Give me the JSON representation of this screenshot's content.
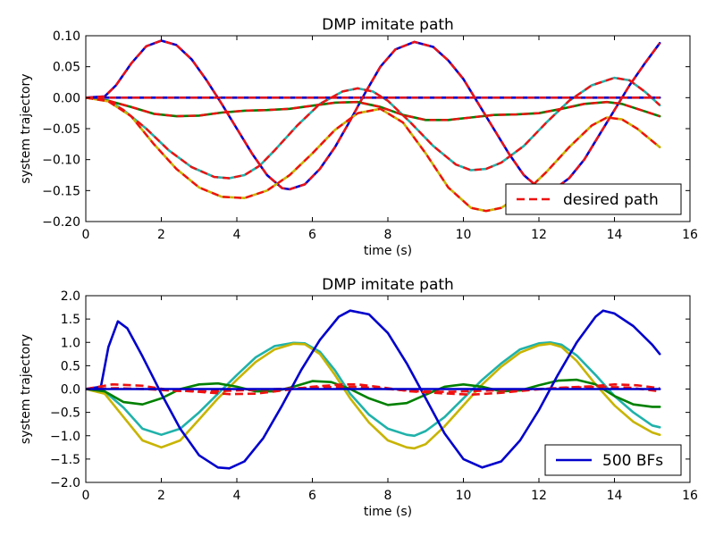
{
  "chart_data": [
    {
      "type": "line",
      "title": "DMP imitate path",
      "xlabel": "time (s)",
      "ylabel": "system trajectory",
      "xlim": [
        0,
        16
      ],
      "ylim": [
        -0.2,
        0.1
      ],
      "x_ticks": [
        0,
        2,
        4,
        6,
        8,
        10,
        12,
        14,
        16
      ],
      "x_tick_labels": [
        "0",
        "2",
        "4",
        "6",
        "8",
        "10",
        "12",
        "14",
        "16"
      ],
      "y_ticks": [
        0.1,
        0.05,
        0.0,
        -0.05,
        -0.1,
        -0.15,
        -0.2
      ],
      "y_tick_labels": [
        "0.10",
        "0.05",
        "0.00",
        "−0.05",
        "−0.10",
        "−0.15",
        "−0.20"
      ],
      "grid": false,
      "legend_position": "lower-right",
      "legend_label": "desired path",
      "series": [
        {
          "color": "#0000cc",
          "style": "solid",
          "x": [
            0,
            0.5,
            0.8,
            1.2,
            1.6,
            2.0,
            2.4,
            2.8,
            3.2,
            3.6,
            4.0,
            4.4,
            4.8,
            5.2,
            5.4,
            5.8,
            6.2,
            6.6,
            7.0,
            7.4,
            7.8,
            8.2,
            8.7,
            9.2,
            9.6,
            10.0,
            10.4,
            10.8,
            11.2,
            11.6,
            12.0,
            12.4,
            12.8,
            13.2,
            13.6,
            14.0,
            14.4,
            14.8,
            15.2
          ],
          "y": [
            0,
            0.002,
            0.02,
            0.055,
            0.083,
            0.092,
            0.085,
            0.062,
            0.028,
            -0.01,
            -0.05,
            -0.09,
            -0.125,
            -0.146,
            -0.148,
            -0.14,
            -0.115,
            -0.08,
            -0.037,
            0.008,
            0.05,
            0.078,
            0.09,
            0.082,
            0.06,
            0.03,
            -0.01,
            -0.05,
            -0.09,
            -0.125,
            -0.146,
            -0.148,
            -0.13,
            -0.1,
            -0.06,
            -0.02,
            0.02,
            0.055,
            0.088
          ]
        },
        {
          "color": "#20b2aa",
          "style": "solid",
          "x": [
            0,
            0.6,
            1.0,
            1.6,
            2.2,
            2.8,
            3.4,
            3.8,
            4.2,
            4.6,
            5.0,
            5.6,
            6.2,
            6.8,
            7.2,
            7.6,
            8.0,
            8.6,
            9.2,
            9.8,
            10.2,
            10.6,
            11.0,
            11.6,
            12.2,
            12.8,
            13.4,
            14.0,
            14.4,
            14.8,
            15.2
          ],
          "y": [
            0,
            -0.005,
            -0.02,
            -0.05,
            -0.085,
            -0.112,
            -0.128,
            -0.13,
            -0.125,
            -0.11,
            -0.085,
            -0.045,
            -0.01,
            0.01,
            0.015,
            0.01,
            -0.005,
            -0.04,
            -0.078,
            -0.108,
            -0.117,
            -0.115,
            -0.105,
            -0.078,
            -0.04,
            -0.005,
            0.02,
            0.032,
            0.028,
            0.01,
            -0.012
          ]
        },
        {
          "color": "#008000",
          "style": "solid",
          "x": [
            0,
            0.6,
            1.2,
            1.8,
            2.4,
            3.0,
            3.6,
            4.2,
            4.8,
            5.4,
            6.0,
            6.6,
            7.2,
            7.8,
            8.4,
            9.0,
            9.6,
            10.2,
            10.8,
            11.4,
            12.0,
            12.6,
            13.2,
            13.8,
            14.2,
            14.6,
            15.2
          ],
          "y": [
            0,
            -0.005,
            -0.015,
            -0.026,
            -0.03,
            -0.029,
            -0.024,
            -0.021,
            -0.02,
            -0.018,
            -0.013,
            -0.008,
            -0.007,
            -0.015,
            -0.028,
            -0.036,
            -0.036,
            -0.032,
            -0.028,
            -0.027,
            -0.025,
            -0.018,
            -0.01,
            -0.007,
            -0.01,
            -0.018,
            -0.03
          ]
        },
        {
          "color": "#c8b400",
          "style": "solid",
          "x": [
            0,
            0.6,
            1.2,
            1.8,
            2.4,
            3.0,
            3.6,
            4.2,
            4.8,
            5.4,
            6.0,
            6.6,
            7.2,
            7.8,
            8.4,
            9.0,
            9.6,
            10.2,
            10.6,
            11.0,
            11.6,
            12.2,
            12.8,
            13.4,
            13.8,
            14.2,
            14.6,
            15.2
          ],
          "y": [
            0,
            -0.006,
            -0.03,
            -0.075,
            -0.115,
            -0.145,
            -0.16,
            -0.162,
            -0.15,
            -0.125,
            -0.09,
            -0.052,
            -0.025,
            -0.018,
            -0.04,
            -0.09,
            -0.145,
            -0.178,
            -0.183,
            -0.178,
            -0.155,
            -0.12,
            -0.08,
            -0.045,
            -0.032,
            -0.035,
            -0.05,
            -0.08
          ]
        },
        {
          "color": "#0000cc",
          "style": "solid",
          "x": [
            0,
            15.2
          ],
          "y": [
            0,
            0
          ]
        }
      ]
    },
    {
      "type": "line",
      "title": "DMP imitate path",
      "xlabel": "time (s)",
      "ylabel": "system trajectory",
      "xlim": [
        0,
        16
      ],
      "ylim": [
        -2.0,
        2.0
      ],
      "x_ticks": [
        0,
        2,
        4,
        6,
        8,
        10,
        12,
        14,
        16
      ],
      "x_tick_labels": [
        "0",
        "2",
        "4",
        "6",
        "8",
        "10",
        "12",
        "14",
        "16"
      ],
      "y_ticks": [
        2.0,
        1.5,
        1.0,
        0.5,
        0.0,
        -0.5,
        -1.0,
        -1.5,
        -2.0
      ],
      "y_tick_labels": [
        "2.0",
        "1.5",
        "1.0",
        "0.5",
        "0.0",
        "−0.5",
        "−1.0",
        "−1.5",
        "−2.0"
      ],
      "grid": false,
      "legend_position": "lower-right",
      "legend_label": "500 BFs",
      "series": [
        {
          "color": "#20b2aa",
          "style": "solid",
          "x": [
            0,
            0.5,
            1.0,
            1.5,
            2.0,
            2.5,
            3.0,
            3.5,
            4.0,
            4.5,
            5.0,
            5.5,
            5.8,
            6.2,
            6.6,
            7.0,
            7.5,
            8.0,
            8.5,
            8.7,
            9.0,
            9.5,
            10.0,
            10.5,
            11.0,
            11.5,
            12.0,
            12.3,
            12.6,
            13.0,
            13.5,
            14.0,
            14.5,
            15.0,
            15.2
          ],
          "y": [
            0,
            -0.05,
            -0.4,
            -0.85,
            -0.98,
            -0.85,
            -0.5,
            -0.1,
            0.3,
            0.68,
            0.92,
            0.99,
            0.98,
            0.8,
            0.4,
            -0.1,
            -0.55,
            -0.85,
            -0.98,
            -1.0,
            -0.9,
            -0.6,
            -0.2,
            0.2,
            0.55,
            0.85,
            0.98,
            1.0,
            0.95,
            0.72,
            0.3,
            -0.15,
            -0.5,
            -0.78,
            -0.82
          ]
        },
        {
          "color": "#c8b400",
          "style": "solid",
          "x": [
            0,
            0.5,
            1.0,
            1.5,
            2.0,
            2.5,
            3.0,
            3.5,
            4.0,
            4.5,
            5.0,
            5.5,
            5.8,
            6.2,
            6.6,
            7.0,
            7.5,
            8.0,
            8.5,
            8.7,
            9.0,
            9.5,
            10.0,
            10.5,
            11.0,
            11.5,
            12.0,
            12.3,
            12.6,
            13.0,
            13.5,
            14.0,
            14.5,
            15.0,
            15.2
          ],
          "y": [
            0,
            -0.1,
            -0.6,
            -1.1,
            -1.25,
            -1.1,
            -0.65,
            -0.2,
            0.2,
            0.58,
            0.85,
            0.97,
            0.96,
            0.75,
            0.3,
            -0.2,
            -0.72,
            -1.1,
            -1.25,
            -1.27,
            -1.18,
            -0.8,
            -0.35,
            0.1,
            0.48,
            0.78,
            0.94,
            0.97,
            0.9,
            0.6,
            0.1,
            -0.35,
            -0.7,
            -0.93,
            -0.98
          ]
        },
        {
          "color": "#008000",
          "style": "solid",
          "x": [
            0,
            0.5,
            1.0,
            1.5,
            2.0,
            2.5,
            3.0,
            3.5,
            4.0,
            4.5,
            5.0,
            5.5,
            6.0,
            6.5,
            7.0,
            7.5,
            8.0,
            8.5,
            9.0,
            9.5,
            10.0,
            10.5,
            11.0,
            11.5,
            12.0,
            12.5,
            13.0,
            13.5,
            14.0,
            14.5,
            15.0,
            15.2
          ],
          "y": [
            0,
            -0.05,
            -0.28,
            -0.33,
            -0.2,
            0.0,
            0.1,
            0.12,
            0.05,
            -0.05,
            -0.05,
            0.05,
            0.17,
            0.15,
            0.0,
            -0.2,
            -0.34,
            -0.3,
            -0.12,
            0.05,
            0.1,
            0.05,
            -0.05,
            -0.03,
            0.08,
            0.18,
            0.2,
            0.1,
            -0.15,
            -0.33,
            -0.38,
            -0.38
          ]
        },
        {
          "color": "#0000cc",
          "style": "solid",
          "x": [
            0,
            0.4,
            0.6,
            0.85,
            1.1,
            1.5,
            2.0,
            2.5,
            3.0,
            3.5,
            3.8,
            4.2,
            4.7,
            5.2,
            5.7,
            6.2,
            6.7,
            7.0,
            7.5,
            8.0,
            8.5,
            9.0,
            9.5,
            10.0,
            10.5,
            11.0,
            11.5,
            12.0,
            12.5,
            13.0,
            13.5,
            13.7,
            14.0,
            14.5,
            15.0,
            15.2
          ],
          "y": [
            0,
            0.05,
            0.9,
            1.45,
            1.3,
            0.7,
            -0.1,
            -0.85,
            -1.42,
            -1.68,
            -1.7,
            -1.55,
            -1.05,
            -0.35,
            0.4,
            1.05,
            1.55,
            1.68,
            1.6,
            1.2,
            0.55,
            -0.2,
            -0.95,
            -1.5,
            -1.68,
            -1.55,
            -1.1,
            -0.45,
            0.3,
            1.0,
            1.55,
            1.68,
            1.62,
            1.35,
            0.95,
            0.75
          ]
        },
        {
          "color": "#ee1111",
          "style": "dashed",
          "x": [
            0,
            0.7,
            1.5,
            2.2,
            3.0,
            3.8,
            4.5,
            5.2,
            6.0,
            6.8,
            7.2,
            7.8,
            8.6,
            9.4,
            10.2,
            11.0,
            11.8,
            12.6,
            13.4,
            14.0,
            14.6,
            15.2
          ],
          "y": [
            0,
            0.1,
            0.07,
            -0.02,
            -0.06,
            -0.11,
            -0.1,
            -0.03,
            0.05,
            0.1,
            0.1,
            0.04,
            -0.05,
            -0.09,
            -0.12,
            -0.08,
            -0.02,
            0.03,
            0.06,
            0.1,
            0.08,
            0.02
          ]
        },
        {
          "color": "#ee1111",
          "style": "dashed",
          "x": [
            0,
            0.8,
            1.6,
            2.4,
            3.2,
            4.0,
            4.8,
            5.6,
            6.4,
            7.2,
            8.0,
            8.8,
            9.6,
            10.4,
            11.2,
            12.0,
            12.8,
            13.6,
            14.4,
            15.2
          ],
          "y": [
            0,
            0.02,
            0.0,
            -0.04,
            -0.05,
            -0.03,
            -0.01,
            0.02,
            0.04,
            0.05,
            0.0,
            -0.05,
            -0.06,
            -0.04,
            -0.02,
            0.0,
            0.03,
            0.05,
            0.03,
            -0.05
          ]
        },
        {
          "color": "#0000cc",
          "style": "solid",
          "x": [
            0,
            15.2
          ],
          "y": [
            0,
            0
          ]
        }
      ]
    }
  ]
}
